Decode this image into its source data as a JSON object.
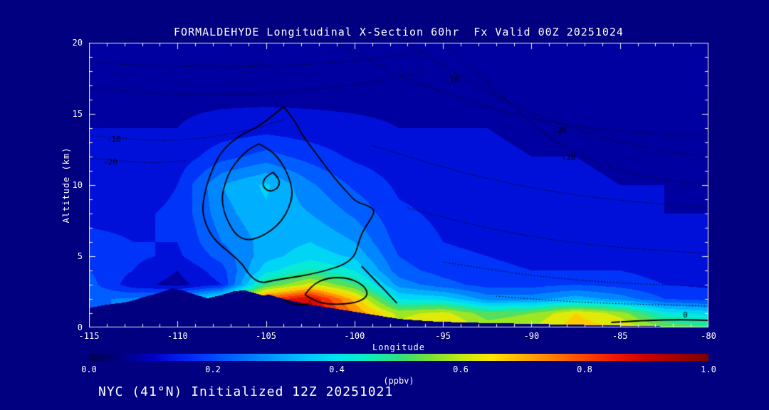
{
  "figure": {
    "footer": "NYC (41°N) Initialized 12Z 20251021",
    "background_color": "#000080",
    "text_color": "#ffffff",
    "frame_color": "#f0f0f0",
    "contour_color": "#000000"
  },
  "chart_data": {
    "type": "heatmap",
    "title": "FORMALDEHYDE Longitudinal X-Section 60hr  Fx Valid 00Z 20251024",
    "xlabel": "Longitude",
    "ylabel": "Altitude (km)",
    "xlim": [
      -115,
      -80
    ],
    "ylim": [
      0,
      20
    ],
    "x_ticks": [
      -115,
      -110,
      -105,
      -100,
      -95,
      -90,
      -85,
      -80
    ],
    "y_ticks": [
      0,
      5,
      10,
      15,
      20
    ],
    "x_minor_step": 1,
    "y_minor_step": 1,
    "levels_step": 0.05,
    "colorbar": {
      "ticks": [
        "0.0",
        "0.2",
        "0.4",
        "0.6",
        "0.8",
        "1.0"
      ],
      "values": [
        0,
        0.2,
        0.4,
        0.6,
        0.8,
        1.0
      ],
      "units": "(ppbv)",
      "stops": [
        [
          0.0,
          "#000055"
        ],
        [
          0.05,
          "#000080"
        ],
        [
          0.1,
          "#0000c0"
        ],
        [
          0.15,
          "#0020f0"
        ],
        [
          0.2,
          "#0048ff"
        ],
        [
          0.25,
          "#0072ff"
        ],
        [
          0.3,
          "#009cff"
        ],
        [
          0.35,
          "#00c4ff"
        ],
        [
          0.4,
          "#00e6ee"
        ],
        [
          0.45,
          "#0ceebe"
        ],
        [
          0.5,
          "#30e080"
        ],
        [
          0.55,
          "#78e038"
        ],
        [
          0.6,
          "#c0ec10"
        ],
        [
          0.65,
          "#ffe600"
        ],
        [
          0.7,
          "#ffb000"
        ],
        [
          0.75,
          "#ff7c00"
        ],
        [
          0.8,
          "#ff4400"
        ],
        [
          0.85,
          "#ee1800"
        ],
        [
          0.9,
          "#cc0000"
        ],
        [
          1.0,
          "#7a0000"
        ]
      ]
    },
    "grid": {
      "lons": [
        -115,
        -112.5,
        -110,
        -107.5,
        -105,
        -102.5,
        -100,
        -97.5,
        -95,
        -92.5,
        -90,
        -87.5,
        -85,
        -82.5,
        -80
      ],
      "alts": [
        0,
        1,
        2,
        3,
        4,
        5,
        6,
        8,
        10,
        12,
        14,
        16,
        18,
        20
      ],
      "values": [
        [
          0.25,
          0.25,
          0.28,
          0.5,
          0.85,
          0.9,
          0.8,
          0.62,
          0.68,
          0.58,
          0.6,
          0.68,
          0.65,
          0.55,
          0.5
        ],
        [
          0.25,
          0.25,
          0.28,
          0.48,
          0.85,
          0.92,
          0.75,
          0.58,
          0.62,
          0.52,
          0.55,
          0.65,
          0.58,
          0.42,
          0.38
        ],
        [
          0.24,
          0.26,
          0.3,
          0.45,
          0.8,
          0.9,
          0.68,
          0.4,
          0.38,
          0.28,
          0.28,
          0.33,
          0.28,
          0.2,
          0.18
        ],
        [
          0.22,
          0.12,
          0.08,
          0.15,
          0.5,
          0.62,
          0.5,
          0.28,
          0.22,
          0.18,
          0.18,
          0.2,
          0.18,
          0.15,
          0.14
        ],
        [
          0.2,
          0.15,
          0.1,
          0.18,
          0.38,
          0.46,
          0.4,
          0.22,
          0.18,
          0.16,
          0.15,
          0.15,
          0.15,
          0.13,
          0.12
        ],
        [
          0.18,
          0.16,
          0.14,
          0.22,
          0.33,
          0.38,
          0.34,
          0.2,
          0.16,
          0.15,
          0.14,
          0.14,
          0.13,
          0.12,
          0.11
        ],
        [
          0.16,
          0.15,
          0.15,
          0.25,
          0.32,
          0.35,
          0.3,
          0.18,
          0.15,
          0.14,
          0.14,
          0.13,
          0.12,
          0.11,
          0.11
        ],
        [
          0.14,
          0.14,
          0.16,
          0.28,
          0.34,
          0.3,
          0.24,
          0.16,
          0.14,
          0.13,
          0.13,
          0.12,
          0.11,
          0.1,
          0.1
        ],
        [
          0.12,
          0.12,
          0.15,
          0.3,
          0.36,
          0.26,
          0.19,
          0.14,
          0.13,
          0.12,
          0.12,
          0.11,
          0.1,
          0.1,
          0.09
        ],
        [
          0.11,
          0.11,
          0.12,
          0.18,
          0.22,
          0.18,
          0.14,
          0.12,
          0.11,
          0.11,
          0.1,
          0.1,
          0.09,
          0.09,
          0.09
        ],
        [
          0.1,
          0.1,
          0.1,
          0.12,
          0.13,
          0.12,
          0.11,
          0.1,
          0.1,
          0.1,
          0.09,
          0.09,
          0.09,
          0.08,
          0.08
        ],
        [
          0.09,
          0.09,
          0.09,
          0.09,
          0.09,
          0.09,
          0.09,
          0.09,
          0.09,
          0.08,
          0.08,
          0.08,
          0.08,
          0.08,
          0.08
        ],
        [
          0.08,
          0.08,
          0.08,
          0.08,
          0.08,
          0.08,
          0.08,
          0.08,
          0.08,
          0.08,
          0.08,
          0.08,
          0.07,
          0.07,
          0.07
        ],
        [
          0.08,
          0.08,
          0.08,
          0.08,
          0.08,
          0.08,
          0.08,
          0.08,
          0.07,
          0.07,
          0.07,
          0.07,
          0.07,
          0.07,
          0.07
        ]
      ]
    },
    "terrain": [
      [
        -115,
        1.35
      ],
      [
        -114,
        1.6
      ],
      [
        -113,
        1.75
      ],
      [
        -112.5,
        1.9
      ],
      [
        -112,
        2.1
      ],
      [
        -111,
        2.45
      ],
      [
        -110.3,
        2.75
      ],
      [
        -109.7,
        2.6
      ],
      [
        -109,
        2.3
      ],
      [
        -108.3,
        2.05
      ],
      [
        -107.6,
        2.25
      ],
      [
        -106.8,
        2.55
      ],
      [
        -106.2,
        2.6
      ],
      [
        -105.6,
        2.4
      ],
      [
        -105.2,
        2.25
      ],
      [
        -104.8,
        2.3
      ],
      [
        -104.3,
        2.1
      ],
      [
        -103.5,
        1.85
      ],
      [
        -102.5,
        1.6
      ],
      [
        -101.5,
        1.4
      ],
      [
        -100.5,
        1.2
      ],
      [
        -99.5,
        1.0
      ],
      [
        -98.5,
        0.8
      ],
      [
        -97.5,
        0.6
      ],
      [
        -96.5,
        0.5
      ],
      [
        -95.5,
        0.42
      ],
      [
        -94,
        0.35
      ],
      [
        -92,
        0.3
      ],
      [
        -90,
        0.25
      ],
      [
        -88,
        0.2
      ],
      [
        -86,
        0.15
      ],
      [
        -84,
        0.1
      ],
      [
        -82,
        0.06
      ],
      [
        -80,
        0.03
      ]
    ],
    "contours": {
      "solid": [
        [
          [
            -104.0,
            15.5
          ],
          [
            -103.4,
            14.6
          ],
          [
            -103.0,
            13.6
          ],
          [
            -102.4,
            12.6
          ],
          [
            -101.8,
            11.6
          ],
          [
            -101.2,
            10.6
          ],
          [
            -100.5,
            9.6
          ],
          [
            -99.9,
            8.8
          ],
          [
            -99.3,
            8.6
          ],
          [
            -98.8,
            8.2
          ],
          [
            -99.2,
            7.4
          ],
          [
            -99.6,
            6.6
          ],
          [
            -99.8,
            5.8
          ],
          [
            -100.0,
            5.0
          ],
          [
            -100.6,
            4.4
          ],
          [
            -101.6,
            4.0
          ],
          [
            -102.6,
            3.7
          ],
          [
            -103.6,
            3.5
          ],
          [
            -104.6,
            3.3
          ],
          [
            -105.3,
            3.1
          ],
          [
            -105.9,
            3.6
          ],
          [
            -106.3,
            4.4
          ],
          [
            -106.9,
            5.1
          ],
          [
            -107.5,
            5.7
          ],
          [
            -108.0,
            6.3
          ],
          [
            -108.4,
            7.2
          ],
          [
            -108.6,
            8.2
          ],
          [
            -108.5,
            9.2
          ],
          [
            -108.3,
            10.2
          ],
          [
            -108.0,
            11.2
          ],
          [
            -107.6,
            12.2
          ],
          [
            -107.0,
            13.0
          ],
          [
            -106.3,
            13.6
          ],
          [
            -105.6,
            14.0
          ],
          [
            -105.0,
            14.5
          ],
          [
            -104.5,
            15.0
          ],
          [
            -104.0,
            15.5
          ]
        ],
        [
          [
            -105.4,
            12.9
          ],
          [
            -104.8,
            12.5
          ],
          [
            -104.3,
            11.9
          ],
          [
            -103.9,
            11.1
          ],
          [
            -103.6,
            10.2
          ],
          [
            -103.5,
            9.3
          ],
          [
            -103.7,
            8.4
          ],
          [
            -104.1,
            7.5
          ],
          [
            -104.7,
            6.8
          ],
          [
            -105.4,
            6.3
          ],
          [
            -106.1,
            6.1
          ],
          [
            -106.7,
            6.5
          ],
          [
            -107.1,
            7.3
          ],
          [
            -107.4,
            8.2
          ],
          [
            -107.5,
            9.2
          ],
          [
            -107.3,
            10.2
          ],
          [
            -107.0,
            11.1
          ],
          [
            -106.5,
            11.9
          ],
          [
            -106.0,
            12.5
          ],
          [
            -105.4,
            12.9
          ]
        ],
        [
          [
            -104.6,
            10.9
          ],
          [
            -104.2,
            10.4
          ],
          [
            -104.3,
            9.8
          ],
          [
            -104.8,
            9.5
          ],
          [
            -105.2,
            9.9
          ],
          [
            -105.1,
            10.5
          ],
          [
            -104.6,
            10.9
          ]
        ],
        [
          [
            -102.8,
            2.3
          ],
          [
            -102.4,
            3.0
          ],
          [
            -101.5,
            3.5
          ],
          [
            -100.4,
            3.5
          ],
          [
            -99.5,
            3.0
          ],
          [
            -99.2,
            2.3
          ],
          [
            -99.7,
            1.8
          ],
          [
            -100.8,
            1.6
          ],
          [
            -102.0,
            1.7
          ],
          [
            -102.8,
            2.3
          ]
        ],
        [
          [
            -99.6,
            4.3
          ],
          [
            -98.9,
            3.4
          ],
          [
            -98.2,
            2.5
          ],
          [
            -97.6,
            1.7
          ]
        ],
        [
          [
            -104.0,
            1.9
          ],
          [
            -103.3,
            1.55
          ],
          [
            -102.6,
            1.65
          ]
        ],
        [
          [
            -85.5,
            0.35
          ],
          [
            -83.5,
            0.5
          ],
          [
            -81.5,
            0.55
          ],
          [
            -80,
            0.5
          ]
        ]
      ],
      "dotted": [
        [
          [
            -115,
            13.5
          ],
          [
            -112,
            13.1
          ],
          [
            -109,
            13.2
          ],
          [
            -106,
            13.8
          ],
          [
            -104,
            14.6
          ]
        ],
        [
          [
            -115,
            11.9
          ],
          [
            -112,
            11.5
          ],
          [
            -109.5,
            11.7
          ]
        ],
        [
          [
            -101,
            20
          ],
          [
            -98,
            18.0
          ],
          [
            -95,
            16.5
          ],
          [
            -92,
            15.3
          ],
          [
            -89,
            14.4
          ],
          [
            -86,
            13.9
          ],
          [
            -83,
            13.6
          ],
          [
            -80,
            13.5
          ]
        ],
        [
          [
            -97,
            20
          ],
          [
            -94,
            17.6
          ],
          [
            -91,
            15.6
          ],
          [
            -88,
            14.1
          ],
          [
            -85,
            13.0
          ],
          [
            -82,
            12.3
          ],
          [
            -80,
            12.0
          ]
        ],
        [
          [
            -95,
            20
          ],
          [
            -92,
            16.6
          ],
          [
            -89.5,
            13.8
          ],
          [
            -87.5,
            12.2
          ],
          [
            -85.5,
            11.2
          ],
          [
            -83,
            10.4
          ],
          [
            -80,
            10.0
          ]
        ],
        [
          [
            -99,
            12.8
          ],
          [
            -96,
            11.6
          ],
          [
            -93,
            10.6
          ],
          [
            -90,
            9.8
          ],
          [
            -87,
            9.2
          ],
          [
            -84,
            8.8
          ],
          [
            -80,
            8.4
          ]
        ],
        [
          [
            -97,
            8.4
          ],
          [
            -94,
            7.4
          ],
          [
            -91,
            6.6
          ],
          [
            -88,
            6.0
          ],
          [
            -85,
            5.6
          ],
          [
            -80,
            5.2
          ]
        ],
        [
          [
            -95,
            4.6
          ],
          [
            -92,
            4.0
          ],
          [
            -89,
            3.5
          ],
          [
            -86,
            3.2
          ],
          [
            -83,
            3.0
          ],
          [
            -80,
            2.9
          ]
        ],
        [
          [
            -92,
            2.2
          ],
          [
            -89,
            1.9
          ],
          [
            -86,
            1.7
          ],
          [
            -83,
            1.6
          ],
          [
            -80,
            1.5
          ]
        ],
        [
          [
            -115,
            16.8
          ],
          [
            -111,
            16.4
          ],
          [
            -107,
            16.3
          ],
          [
            -103,
            16.6
          ],
          [
            -99,
            17.2
          ],
          [
            -96,
            18.0
          ]
        ],
        [
          [
            -115,
            18.6
          ],
          [
            -110,
            18.3
          ],
          [
            -105,
            18.3
          ],
          [
            -100,
            18.7
          ],
          [
            -96,
            19.4
          ]
        ]
      ],
      "labels": [
        {
          "text": "-10",
          "lon": -113.6,
          "alt": 13.2
        },
        {
          "text": "-20",
          "lon": -113.8,
          "alt": 11.6
        },
        {
          "text": "-10",
          "lon": -94.5,
          "alt": 17.4
        },
        {
          "text": "-20",
          "lon": -88.4,
          "alt": 13.8
        },
        {
          "text": "-30",
          "lon": -87.9,
          "alt": 11.9
        },
        {
          "text": "0",
          "lon": -81.3,
          "alt": 0.85
        }
      ]
    }
  }
}
